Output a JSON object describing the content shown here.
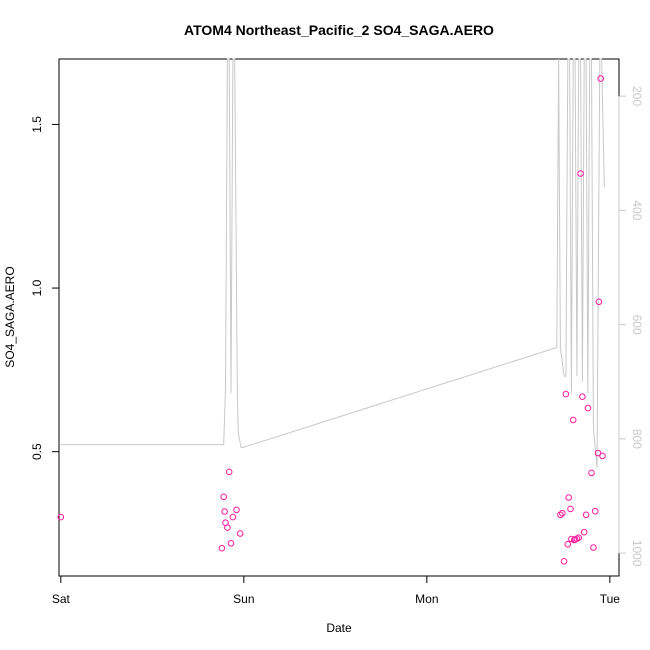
{
  "chart_data": {
    "type": "scatter",
    "title": "ATOM4 Northeast_Pacific_2 SO4_SAGA.AERO",
    "xlabel": "Date",
    "ylabel": "SO4_SAGA.AERO",
    "x_unit": "days",
    "xlim": [
      -0.01,
      3.05
    ],
    "ylim": [
      0.12,
      1.7
    ],
    "x_ticks": [
      {
        "value": 0,
        "label": "Sat"
      },
      {
        "value": 1,
        "label": "Sun"
      },
      {
        "value": 2,
        "label": "Mon"
      },
      {
        "value": 3,
        "label": "Tue"
      }
    ],
    "y_ticks": [
      0.5,
      1.0,
      1.5
    ],
    "y_tick_labels": [
      "0.5",
      "1.0",
      "1.5"
    ],
    "y2_ticks": [
      200,
      400,
      600,
      800,
      1000
    ],
    "y2_tick_labels": [
      "200",
      "400",
      "600",
      "800",
      "1000"
    ],
    "y2_reversed": true,
    "y2_lim": [
      1040,
      135
    ],
    "grid": false,
    "points_color": "#ff1a9f",
    "line_color": "#c8c8c8",
    "series": [
      {
        "kind": "points",
        "points": [
          [
            0.0,
            0.3
          ],
          [
            0.88,
            0.205
          ],
          [
            0.89,
            0.362
          ],
          [
            0.895,
            0.317
          ],
          [
            0.9,
            0.283
          ],
          [
            0.91,
            0.268
          ],
          [
            0.92,
            0.438
          ],
          [
            0.93,
            0.22
          ],
          [
            0.94,
            0.3
          ],
          [
            0.96,
            0.322
          ],
          [
            0.98,
            0.25
          ],
          [
            2.73,
            0.307
          ],
          [
            2.74,
            0.312
          ],
          [
            2.75,
            0.165
          ],
          [
            2.76,
            0.676
          ],
          [
            2.77,
            0.217
          ],
          [
            2.775,
            0.36
          ],
          [
            2.785,
            0.325
          ],
          [
            2.79,
            0.233
          ],
          [
            2.8,
            0.597
          ],
          [
            2.805,
            0.23
          ],
          [
            2.81,
            0.232
          ],
          [
            2.82,
            0.234
          ],
          [
            2.83,
            0.237
          ],
          [
            2.84,
            1.35
          ],
          [
            2.85,
            0.668
          ],
          [
            2.86,
            0.254
          ],
          [
            2.87,
            0.307
          ],
          [
            2.88,
            0.633
          ],
          [
            2.9,
            0.435
          ],
          [
            2.91,
            0.207
          ],
          [
            2.92,
            0.318
          ],
          [
            2.935,
            0.496
          ],
          [
            2.94,
            0.958
          ],
          [
            2.95,
            1.64
          ],
          [
            2.96,
            0.487
          ]
        ]
      },
      {
        "kind": "line",
        "axis": "y2",
        "points": [
          [
            0.0,
            810
          ],
          [
            0.89,
            810
          ],
          [
            0.9,
            710
          ],
          [
            0.91,
            135
          ],
          [
            0.92,
            135
          ],
          [
            0.93,
            720
          ],
          [
            0.94,
            135
          ],
          [
            0.95,
            135
          ],
          [
            0.965,
            730
          ],
          [
            0.97,
            790
          ],
          [
            0.985,
            815
          ],
          [
            0.995,
            815
          ],
          [
            2.71,
            640
          ],
          [
            2.72,
            135
          ],
          [
            2.73,
            640
          ],
          [
            2.75,
            690
          ],
          [
            2.76,
            690
          ],
          [
            2.77,
            135
          ],
          [
            2.78,
            135
          ],
          [
            2.79,
            720
          ],
          [
            2.8,
            135
          ],
          [
            2.81,
            135
          ],
          [
            2.82,
            690
          ],
          [
            2.83,
            135
          ],
          [
            2.84,
            135
          ],
          [
            2.85,
            700
          ],
          [
            2.86,
            135
          ],
          [
            2.87,
            135
          ],
          [
            2.88,
            720
          ],
          [
            2.89,
            135
          ],
          [
            2.9,
            135
          ],
          [
            2.91,
            780
          ],
          [
            2.93,
            850
          ],
          [
            2.945,
            135
          ],
          [
            2.955,
            135
          ],
          [
            2.97,
            360
          ]
        ]
      }
    ]
  }
}
